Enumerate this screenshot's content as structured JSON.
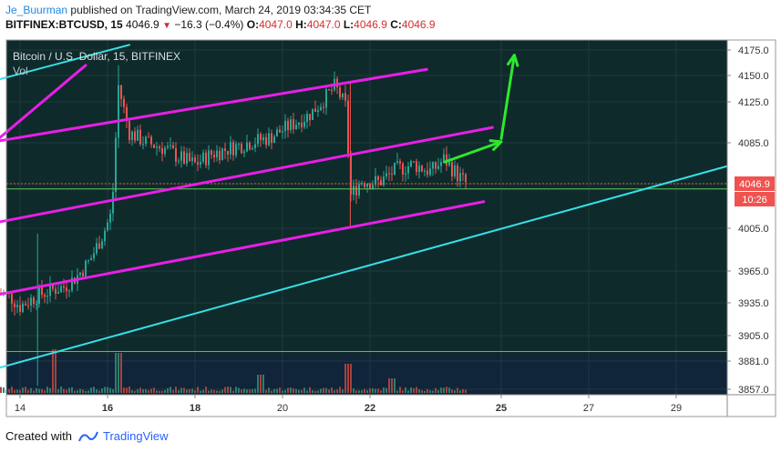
{
  "header": {
    "author": "Je_Buurman",
    "published": "published on TradingView.com, March 24, 2019 03:34:35 CET",
    "symbol": "BITFINEX:BTCUSD, 15",
    "last_price": "4046.9",
    "change": "−16.3 (−0.4%)",
    "open_label": "O:",
    "open": "4047.0",
    "high_label": "H:",
    "high": "4047.0",
    "low_label": "L:",
    "low": "4046.9",
    "close_label": "C:",
    "close": "4046.9"
  },
  "legend": {
    "title": "Bitcoin / U.S. Dollar, 15, BITFINEX",
    "volume": "Vol"
  },
  "price_tag": {
    "value": "4046.9",
    "countdown": "10:26"
  },
  "footer": {
    "created_with": "Created with",
    "brand": "TradingView"
  },
  "colors": {
    "background": "#0f2a2a",
    "volume_bg": "#10243a",
    "grid": "#1f3a3a",
    "candle_up": "#27a69a",
    "candle_down": "#ef5350",
    "channel_magenta": "#e81ee8",
    "trend_cyan": "#35e0e8",
    "projection_green": "#2ee82e",
    "price_tag": "#ef5350",
    "level_line": "#5dc95d"
  },
  "chart_data": {
    "type": "candlestick",
    "x_tick_labels": [
      "14",
      "16",
      "18",
      "20",
      "22",
      "25",
      "27",
      "29"
    ],
    "y_tick_labels": [
      "4175.0",
      "4150.0",
      "4125.0",
      "4085.0",
      "4046.9",
      "4005.0",
      "3965.0",
      "3935.0",
      "3905.0",
      "3881.0",
      "3857.0"
    ],
    "price_path": [
      [
        13.5,
        3945
      ],
      [
        13.8,
        3940
      ],
      [
        14.0,
        3932
      ],
      [
        14.4,
        3942
      ],
      [
        14.8,
        3948
      ],
      [
        15.0,
        3950
      ],
      [
        15.3,
        3960
      ],
      [
        15.6,
        3975
      ],
      [
        15.9,
        4000
      ],
      [
        16.1,
        4020
      ],
      [
        16.25,
        4140
      ],
      [
        16.5,
        4095
      ],
      [
        16.9,
        4085
      ],
      [
        17.3,
        4080
      ],
      [
        17.7,
        4070
      ],
      [
        18.0,
        4065
      ],
      [
        18.4,
        4075
      ],
      [
        18.8,
        4080
      ],
      [
        19.2,
        4085
      ],
      [
        19.7,
        4090
      ],
      [
        20.1,
        4100
      ],
      [
        20.6,
        4112
      ],
      [
        20.9,
        4125
      ],
      [
        21.2,
        4140
      ],
      [
        21.45,
        4120
      ],
      [
        21.55,
        4035
      ],
      [
        21.8,
        4050
      ],
      [
        22.2,
        4048
      ],
      [
        22.6,
        4060
      ],
      [
        23.0,
        4065
      ],
      [
        23.4,
        4058
      ],
      [
        23.7,
        4070
      ],
      [
        24.0,
        4055
      ],
      [
        24.2,
        4046.9
      ]
    ],
    "volume_spikes": [
      [
        14.8,
        1.0
      ],
      [
        16.25,
        0.9
      ],
      [
        21.5,
        0.6
      ],
      [
        19.5,
        0.3
      ],
      [
        22.5,
        0.2
      ]
    ],
    "drawings": {
      "channel_upper": [
        [
          13.4,
          4085
        ],
        [
          15.5,
          4160
        ]
      ],
      "channel_mid": [
        [
          13.4,
          4086
        ],
        [
          23.3,
          4156
        ]
      ],
      "channel_low": [
        [
          13.4,
          4010
        ],
        [
          24.8,
          4100
        ]
      ],
      "channel_bottom": [
        [
          13.4,
          3942
        ],
        [
          24.6,
          4030
        ]
      ],
      "trend_upper": [
        [
          13.4,
          4145
        ],
        [
          16.5,
          4180
        ]
      ],
      "trend_lower": [
        [
          13.4,
          3874
        ],
        [
          30.5,
          4067
        ]
      ],
      "projection_leg1": [
        [
          23.7,
          4067
        ],
        [
          25.0,
          4086
        ]
      ],
      "projection_leg2": [
        [
          25.0,
          4089
        ],
        [
          25.3,
          4170
        ]
      ]
    },
    "current_price": 4046.9,
    "horizontal_levels": [
      4042,
      3890
    ]
  }
}
